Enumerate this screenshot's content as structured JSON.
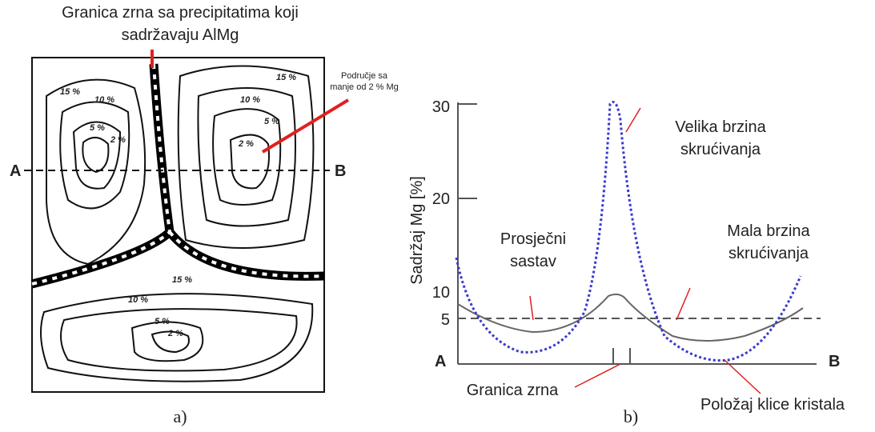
{
  "panel_a": {
    "title": [
      "Granica zrna sa precipitatima koji",
      "sadržavaju AlMg"
    ],
    "note": [
      "Područje sa",
      "manje od 2 % Mg"
    ],
    "left_label": "A",
    "right_label": "B",
    "contours": [
      "15 %",
      "10 %",
      "5 %",
      "2 %",
      "15 %",
      "10 %",
      "5 %",
      "2 %",
      "15 %",
      "10 %",
      "5 %",
      "2 %"
    ],
    "caption": "a)"
  },
  "panel_b": {
    "y_label": "Sadržaj Mg [%]",
    "y_ticks": [
      "30",
      "20",
      "10",
      "5"
    ],
    "left_label": "A",
    "right_label": "B",
    "high_rate": [
      "Velika brzina",
      "skrućivanja"
    ],
    "average": [
      "Prosječni",
      "sastav"
    ],
    "low_rate": [
      "Mala brzina",
      "skrućivanja"
    ],
    "grain_boundary": "Granica zrna",
    "nucleus": "Položaj klice kristala",
    "caption": "b)"
  }
}
